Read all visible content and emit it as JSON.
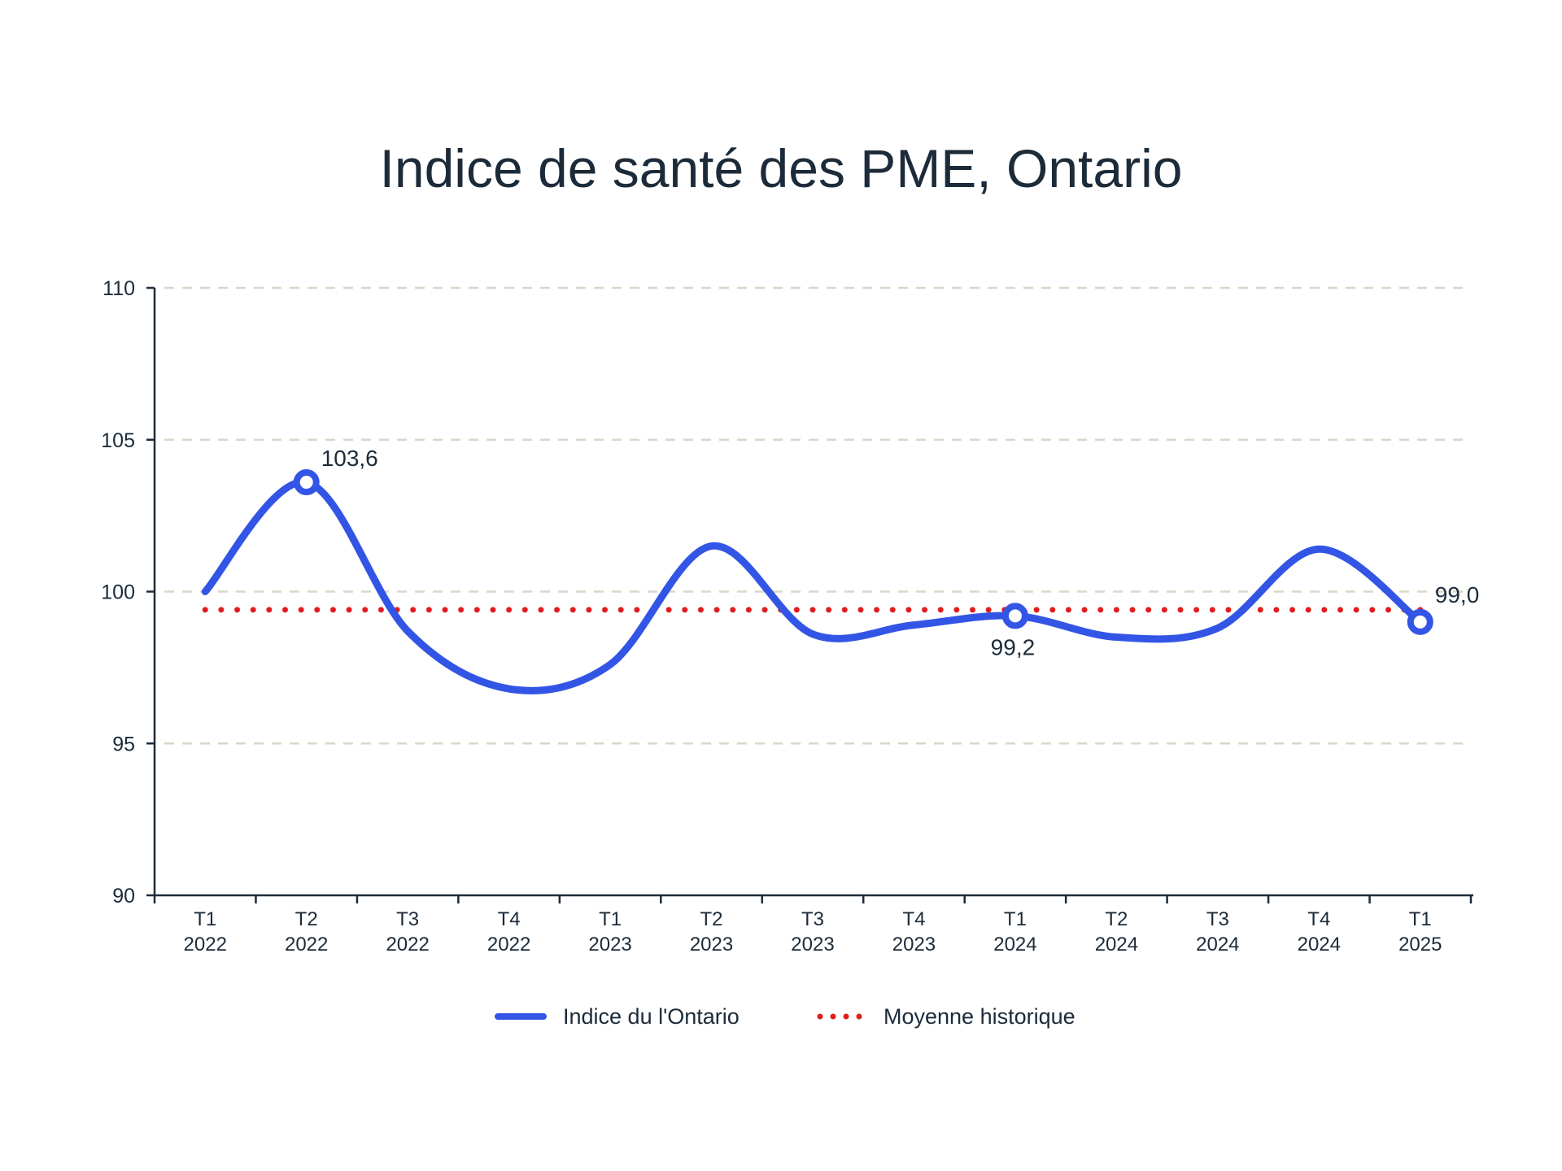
{
  "chart_data": {
    "type": "line",
    "title": "Indice de santé des PME, Ontario",
    "xlabel": "",
    "ylabel": "",
    "ylim": [
      90,
      110
    ],
    "yticks": [
      "90",
      "95",
      "100",
      "105",
      "110"
    ],
    "grid": true,
    "legend_placement": "bottom-center",
    "categories": [
      [
        "T1",
        "2022"
      ],
      [
        "T2",
        "2022"
      ],
      [
        "T3",
        "2022"
      ],
      [
        "T4",
        "2022"
      ],
      [
        "T1",
        "2023"
      ],
      [
        "T2",
        "2023"
      ],
      [
        "T3",
        "2023"
      ],
      [
        "T4",
        "2023"
      ],
      [
        "T1",
        "2024"
      ],
      [
        "T2",
        "2024"
      ],
      [
        "T3",
        "2024"
      ],
      [
        "T4",
        "2024"
      ],
      [
        "T1",
        "2025"
      ]
    ],
    "series": [
      {
        "name": "Indice du l'Ontario",
        "style": "solid",
        "color": "#3355e6",
        "values": [
          100.0,
          103.6,
          98.7,
          96.8,
          97.6,
          101.5,
          98.6,
          98.9,
          99.2,
          98.5,
          98.8,
          101.4,
          99.0
        ],
        "highlighted_points": [
          {
            "index": 1,
            "label": "103,6"
          },
          {
            "index": 8,
            "label": "99,2"
          },
          {
            "index": 12,
            "label": "99,0"
          }
        ]
      },
      {
        "name": "Moyenne historique",
        "style": "dotted",
        "color": "#e01d1d",
        "values": [
          99.4,
          99.4,
          99.4,
          99.4,
          99.4,
          99.4,
          99.4,
          99.4,
          99.4,
          99.4,
          99.4,
          99.4,
          99.4
        ]
      }
    ],
    "colors": {
      "axis": "#1c2b39",
      "grid": "#d8d8c8"
    }
  }
}
